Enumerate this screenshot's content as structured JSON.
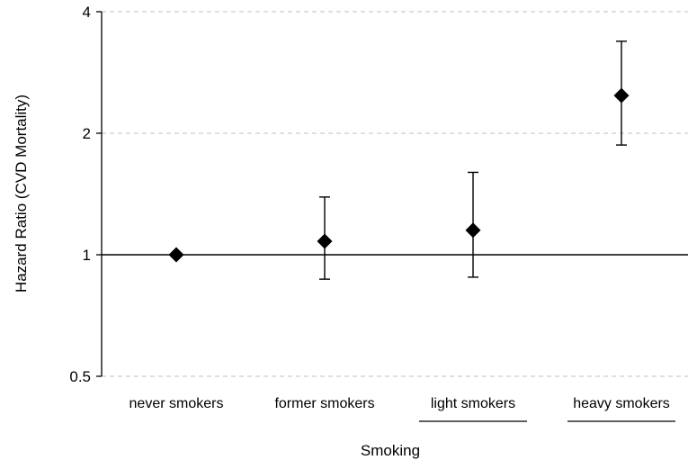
{
  "chart_data": {
    "type": "scatter",
    "title": "",
    "xlabel": "Smoking",
    "ylabel": "Hazard Ratio (CVD Mortality)",
    "y_scale": "log2",
    "ylim": [
      0.5,
      4
    ],
    "yticks": [
      {
        "value": 0.5,
        "label": "0.5"
      },
      {
        "value": 1,
        "label": "1"
      },
      {
        "value": 2,
        "label": "2"
      },
      {
        "value": 4,
        "label": "4"
      }
    ],
    "grid": "horizontal dashed",
    "reference_line": 1,
    "categories": [
      "never smokers",
      "former smokers",
      "light smokers",
      "heavy smokers"
    ],
    "underlined_categories": [
      "light smokers",
      "heavy smokers"
    ],
    "values": [
      1.0,
      1.08,
      1.15,
      2.48
    ],
    "lower": [
      1.0,
      0.87,
      0.88,
      1.87
    ],
    "upper": [
      1.0,
      1.39,
      1.6,
      3.38
    ],
    "marker": "diamond",
    "colors": {
      "marker": "#000000",
      "grid": "#bfbfbf",
      "axis": "#000000"
    }
  }
}
